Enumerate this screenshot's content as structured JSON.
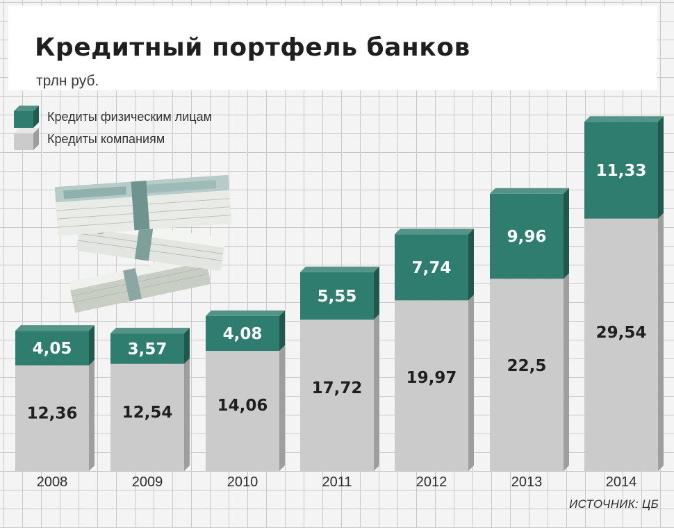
{
  "header": {
    "title": "Кредитный портфель банков",
    "unit": "трлн руб."
  },
  "legend": [
    {
      "label": "Кредиты физическим лицам",
      "color": "#2f7d6e"
    },
    {
      "label": "Кредиты компаниям",
      "color": "#cbcbcb"
    }
  ],
  "illustration": {
    "icon": "money-stack-icon"
  },
  "source": "ИСТОЧНИК: ЦБ",
  "chart_data": {
    "type": "bar",
    "stacked": true,
    "categories": [
      "2008",
      "2009",
      "2010",
      "2011",
      "2012",
      "2013",
      "2014"
    ],
    "series": [
      {
        "name": "Кредиты компаниям",
        "color": "#cbcbcb",
        "values": [
          12.36,
          12.54,
          14.06,
          17.72,
          19.97,
          22.5,
          29.54
        ],
        "labels": [
          "12,36",
          "12,54",
          "14,06",
          "17,72",
          "19,97",
          "22,5",
          "29,54"
        ]
      },
      {
        "name": "Кредиты физическим лицам",
        "color": "#2f7d6e",
        "values": [
          4.05,
          3.57,
          4.08,
          5.55,
          7.74,
          9.96,
          11.33
        ],
        "labels": [
          "4,05",
          "3,57",
          "4,08",
          "5,55",
          "7,74",
          "9,96",
          "11,33"
        ]
      }
    ],
    "title": "Кредитный портфель банков",
    "ylabel": "трлн руб.",
    "ylim": [
      0,
      41
    ],
    "grid": true,
    "legend_position": "top-left"
  }
}
